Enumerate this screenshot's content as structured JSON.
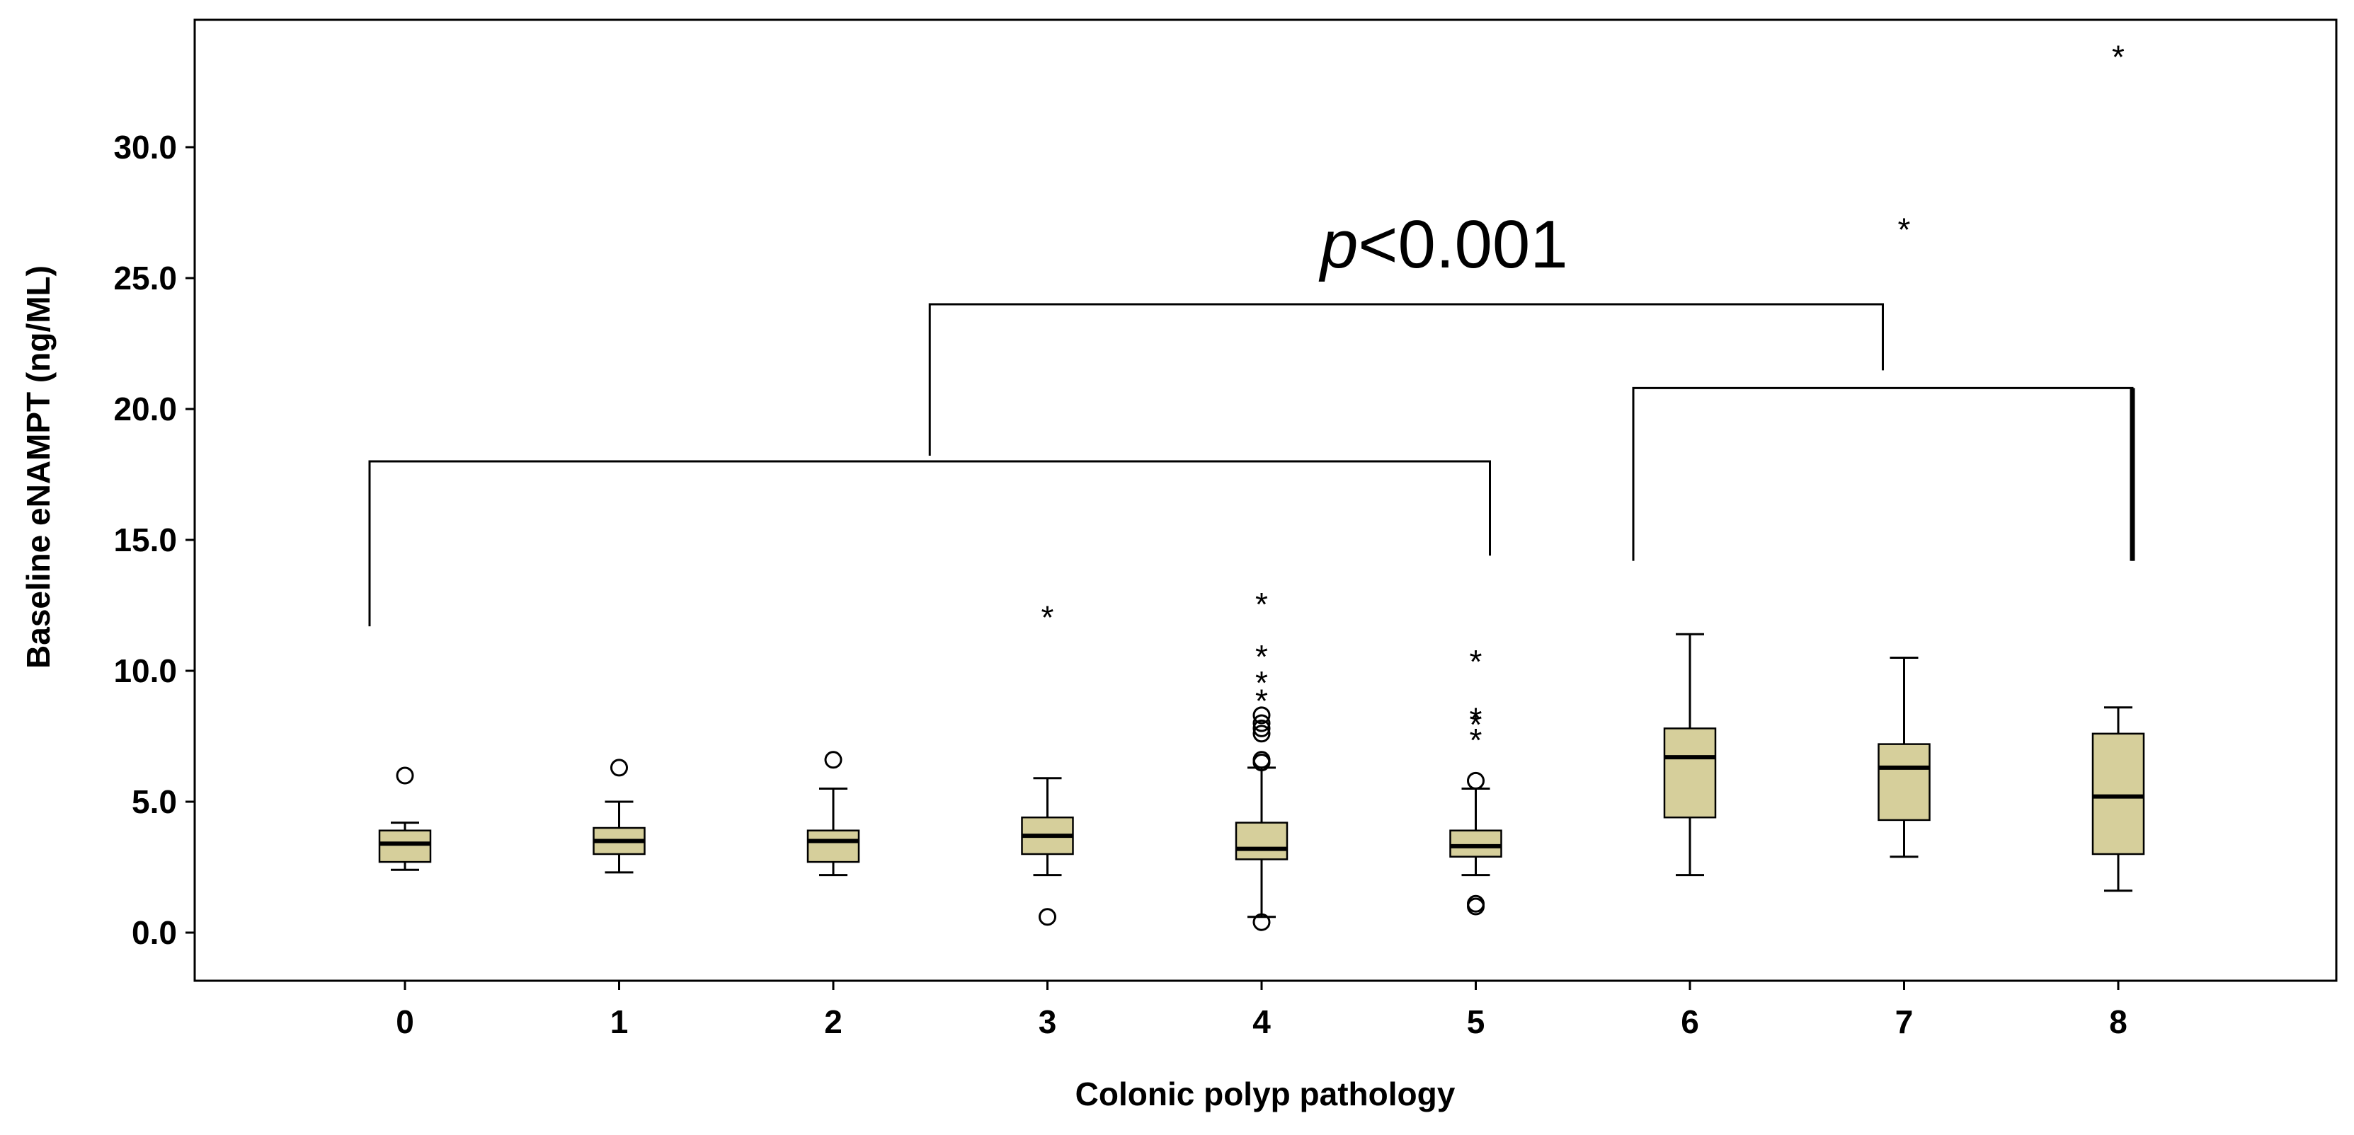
{
  "chart_data": {
    "type": "box",
    "title": "",
    "xlabel": "Colonic polyp pathology",
    "ylabel": "Baseline eNAMPT (ng/ML)",
    "ylim": [
      -1.8,
      35
    ],
    "yticks": [
      0,
      5,
      10,
      15,
      20,
      25,
      30
    ],
    "ytick_labels": [
      "0.0",
      "5.0",
      "10.0",
      "15.0",
      "20.0",
      "25.0",
      "30.0"
    ],
    "categories": [
      "0",
      "1",
      "2",
      "3",
      "4",
      "5",
      "6",
      "7",
      "8"
    ],
    "box_color": "#d6cf9b",
    "boxes": [
      {
        "category": "0",
        "whisker_low": 2.4,
        "q1": 2.7,
        "median": 3.4,
        "q3": 3.9,
        "whisker_high": 4.2,
        "outliers_circle": [
          6.0
        ],
        "outliers_star": []
      },
      {
        "category": "1",
        "whisker_low": 2.3,
        "q1": 3.0,
        "median": 3.5,
        "q3": 4.0,
        "whisker_high": 5.0,
        "outliers_circle": [
          6.3
        ],
        "outliers_star": []
      },
      {
        "category": "2",
        "whisker_low": 2.2,
        "q1": 2.7,
        "median": 3.5,
        "q3": 3.9,
        "whisker_high": 5.5,
        "outliers_circle": [
          6.6
        ],
        "outliers_star": []
      },
      {
        "category": "3",
        "whisker_low": 2.2,
        "q1": 3.0,
        "median": 3.7,
        "q3": 4.4,
        "whisker_high": 5.9,
        "outliers_circle": [
          0.6
        ],
        "outliers_star": [
          12.1
        ]
      },
      {
        "category": "4",
        "whisker_low": 0.6,
        "q1": 2.8,
        "median": 3.2,
        "q3": 4.2,
        "whisker_high": 6.3,
        "outliers_circle": [
          0.4,
          6.5,
          6.6,
          7.6,
          7.8,
          8.0,
          8.3
        ],
        "outliers_star": [
          8.9,
          9.6,
          10.6,
          12.6
        ]
      },
      {
        "category": "5",
        "whisker_low": 2.2,
        "q1": 2.9,
        "median": 3.3,
        "q3": 3.9,
        "whisker_high": 5.5,
        "outliers_circle": [
          1.0,
          1.1,
          5.8
        ],
        "outliers_star": [
          7.4,
          8.0,
          8.2,
          10.4
        ]
      },
      {
        "category": "6",
        "whisker_low": 2.2,
        "q1": 4.4,
        "median": 6.7,
        "q3": 7.8,
        "whisker_high": 11.4,
        "outliers_circle": [],
        "outliers_star": []
      },
      {
        "category": "7",
        "whisker_low": 2.9,
        "q1": 4.3,
        "median": 6.3,
        "q3": 7.2,
        "whisker_high": 10.5,
        "outliers_circle": [],
        "outliers_star": [
          26.9
        ]
      },
      {
        "category": "8",
        "whisker_low": 1.6,
        "q1": 3.0,
        "median": 5.2,
        "q3": 7.6,
        "whisker_high": 8.6,
        "outliers_circle": [],
        "outliers_star": [
          33.5
        ]
      }
    ],
    "annotations": {
      "p_value_prefix": "p",
      "p_value_rest": "<0.001",
      "bracket_left_groups": [
        "0",
        "5"
      ],
      "bracket_right_groups": [
        "6",
        "8"
      ]
    }
  }
}
